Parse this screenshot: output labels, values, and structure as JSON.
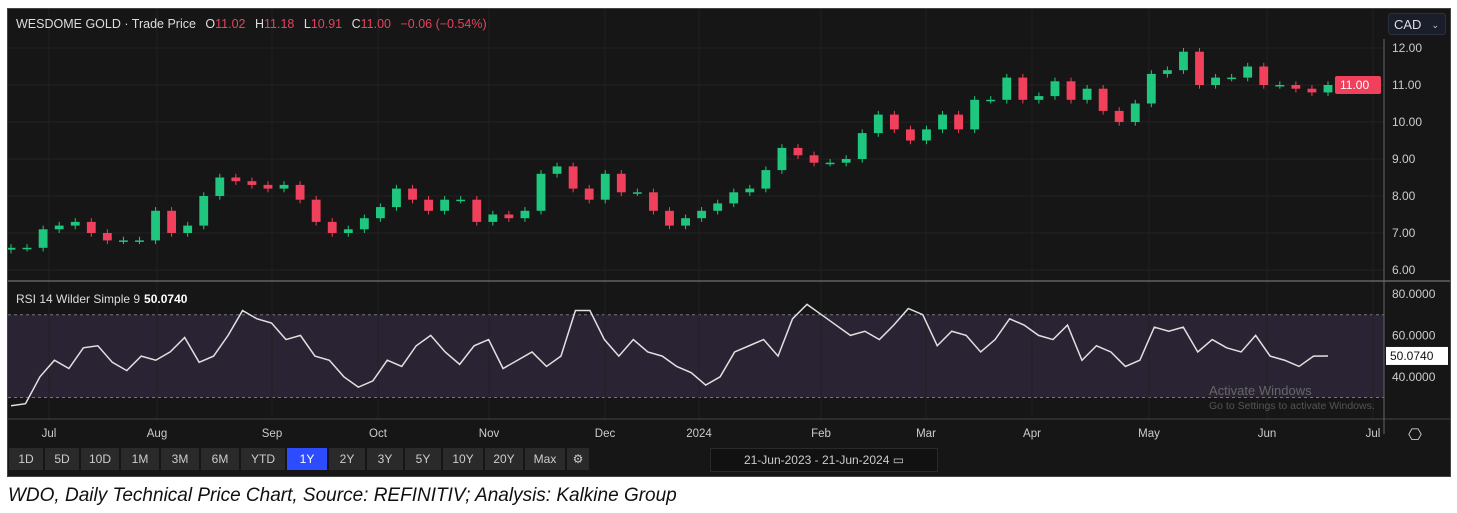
{
  "header": {
    "name": "WESDOME GOLD",
    "sep": "·",
    "type": "Trade Price",
    "o_label": "O",
    "o": "11.02",
    "h_label": "H",
    "h": "11.18",
    "l_label": "L",
    "l": "10.91",
    "c_label": "C",
    "c": "11.00",
    "change": "−0.06 (−0.54%)"
  },
  "currency": "CAD",
  "rsi_label": {
    "name": "RSI 14 Wilder Simple 9",
    "value": "50.0740"
  },
  "buttons": [
    "1D",
    "5D",
    "10D",
    "1M",
    "3M",
    "6M",
    "YTD",
    "1Y",
    "2Y",
    "3Y",
    "5Y",
    "10Y",
    "20Y",
    "Max"
  ],
  "active_button": "1Y",
  "date_range": "21-Jun-2023  -  21-Jun-2024",
  "watermark": {
    "line1": "Activate Windows",
    "line2": "Go to Settings to activate Windows."
  },
  "caption": "WDO, Daily Technical Price Chart, Source: REFINITIV; Analysis: Kalkine Group",
  "colors": {
    "up": "#1fc77e",
    "down": "#f0405c",
    "rsi_line": "#e0e0e0",
    "rsi_band": "#2a2333"
  },
  "chart_data": [
    {
      "type": "candlestick",
      "title": "WESDOME GOLD - Trade Price",
      "ylim": [
        6,
        12
      ],
      "yticks": [
        "12.00",
        "11.00",
        "10.00",
        "9.00",
        "8.00",
        "7.00",
        "6.00"
      ],
      "ytick_values": [
        12,
        11,
        10,
        9,
        8,
        7,
        6
      ],
      "last_price_label": "11.00",
      "xticks": [
        "Jul",
        "Aug",
        "Sep",
        "Oct",
        "Nov",
        "Dec",
        "2024",
        "Feb",
        "Mar",
        "Apr",
        "May",
        "Jun",
        "Jul"
      ],
      "closes": [
        6.6,
        6.6,
        7.1,
        7.2,
        7.3,
        7.0,
        6.8,
        6.8,
        6.8,
        7.6,
        7.0,
        7.2,
        8.0,
        8.5,
        8.4,
        8.3,
        8.2,
        8.3,
        7.9,
        7.3,
        7.0,
        7.1,
        7.4,
        7.7,
        8.2,
        7.9,
        7.6,
        7.9,
        7.9,
        7.3,
        7.5,
        7.4,
        7.6,
        8.6,
        8.8,
        8.2,
        7.9,
        8.6,
        8.1,
        8.1,
        7.6,
        7.2,
        7.4,
        7.6,
        7.8,
        8.1,
        8.2,
        8.7,
        9.3,
        9.1,
        8.9,
        8.9,
        9.0,
        9.7,
        10.2,
        9.8,
        9.5,
        9.8,
        10.2,
        9.8,
        10.6,
        10.6,
        11.2,
        10.6,
        10.7,
        11.1,
        10.6,
        10.9,
        10.3,
        10.0,
        10.5,
        11.3,
        11.4,
        11.9,
        11.0,
        11.2,
        11.2,
        11.5,
        11.0,
        11.0,
        10.9,
        10.8,
        11.0
      ]
    },
    {
      "type": "line",
      "title": "RSI 14 Wilder Simple 9",
      "ylim": [
        20,
        85
      ],
      "yticks": [
        "80.0000",
        "60.0000",
        "40.0000"
      ],
      "ytick_values": [
        80,
        60,
        40
      ],
      "bands": [
        30,
        70
      ],
      "last_value_label": "50.0740",
      "values": [
        26,
        27,
        40,
        48,
        44,
        54,
        55,
        47,
        43,
        50,
        48,
        52,
        59,
        47,
        50,
        60,
        72,
        68,
        66,
        58,
        60,
        50,
        48,
        40,
        35,
        38,
        48,
        45,
        55,
        60,
        52,
        46,
        55,
        58,
        44,
        48,
        52,
        45,
        50,
        72,
        72,
        58,
        50,
        58,
        52,
        50,
        45,
        42,
        36,
        40,
        52,
        55,
        58,
        50,
        68,
        75,
        70,
        65,
        60,
        62,
        58,
        65,
        73,
        70,
        55,
        62,
        60,
        52,
        58,
        68,
        65,
        60,
        58,
        65,
        48,
        55,
        52,
        45,
        48,
        64,
        62,
        64,
        52,
        58,
        54,
        52,
        60,
        50,
        48,
        45,
        50,
        50.07
      ]
    }
  ]
}
